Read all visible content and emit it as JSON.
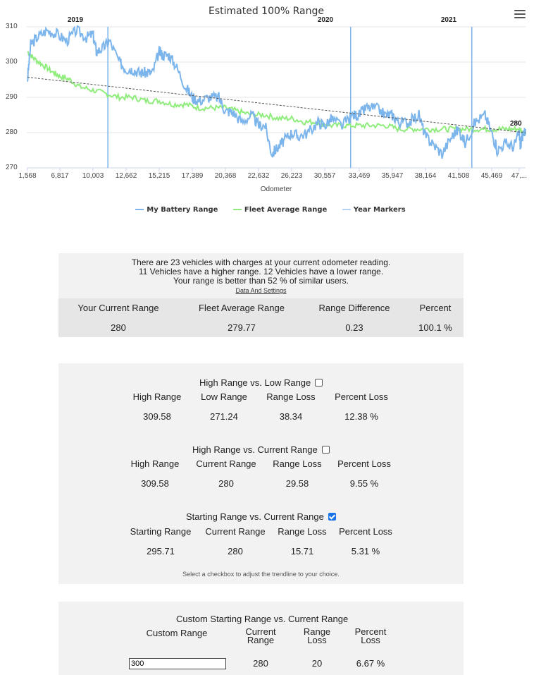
{
  "chart": {
    "title": "Estimated 100% Range",
    "menu_icon": "hamburger-menu-icon",
    "x_axis_title": "Odometer",
    "end_label": "280",
    "legend": [
      {
        "name": "My Battery Range",
        "color": "#7cb5ec"
      },
      {
        "name": "Fleet Average Range",
        "color": "#90ed7d"
      },
      {
        "name": "Year Markers",
        "color": "#b3d4f5"
      }
    ]
  },
  "chart_data": {
    "type": "line",
    "title": "Estimated 100% Range",
    "xlabel": "Odometer",
    "ylabel": "",
    "ylim": [
      270,
      310
    ],
    "y_ticks": [
      "310",
      "300",
      "290",
      "280",
      "270"
    ],
    "x_tick_labels": [
      "1,568",
      "6,817",
      "10,003",
      "12,662",
      "15,215",
      "17,389",
      "20,368",
      "22,632",
      "26,223",
      "30,557",
      "33,469",
      "35,947",
      "38,164",
      "41,508",
      "45,469",
      "47,..."
    ],
    "year_markers": [
      {
        "label": "2019",
        "x_index": 2.45
      },
      {
        "label": "2020",
        "x_index": 9.75
      },
      {
        "label": "2021",
        "x_index": 13.4
      }
    ],
    "legend_placement": "bottom-center",
    "grid": true,
    "series": [
      {
        "name": "My Battery Range",
        "color": "#7cb5ec",
        "x": [
          0,
          0.1,
          0.3,
          0.6,
          0.9,
          1.2,
          1.5,
          1.8,
          2.0,
          2.1,
          2.3,
          2.5,
          2.8,
          3.0,
          3.2,
          3.4,
          3.6,
          3.8,
          4.0,
          4.1,
          4.3,
          4.5,
          4.8,
          5.0,
          5.2,
          5.5,
          5.8,
          6.0,
          6.2,
          6.5,
          6.8,
          7.0,
          7.2,
          7.4,
          7.6,
          7.8,
          8.0,
          8.2,
          8.5,
          8.8,
          9.0,
          9.2,
          9.5,
          9.8,
          10.0,
          10.2,
          10.5,
          10.8,
          11.0,
          11.2,
          11.5,
          11.8,
          12.0,
          12.2,
          12.5,
          12.8,
          13.0,
          13.2,
          13.5,
          13.8,
          14.0,
          14.2,
          14.5,
          14.8,
          15.0,
          15.2,
          15.5,
          15.7,
          16.0
        ],
        "values": [
          295,
          305,
          307,
          309,
          308,
          306,
          309,
          307,
          308,
          303,
          304,
          306,
          300,
          298,
          298,
          297,
          297,
          297,
          303,
          302,
          302,
          299,
          293,
          290,
          289,
          290,
          290,
          286,
          286,
          283,
          285,
          282,
          282,
          274,
          276,
          278,
          280,
          279,
          280,
          283,
          282,
          284,
          282,
          285,
          285,
          287,
          287,
          285,
          285,
          283,
          283,
          285,
          279,
          277,
          274,
          279,
          281,
          277,
          283,
          285,
          280,
          275,
          277,
          276,
          280,
          276,
          279,
          279,
          281
        ]
      },
      {
        "name": "Fleet Average Range",
        "color": "#90ed7d",
        "x": [
          0,
          0.2,
          0.5,
          0.8,
          1.0,
          1.3,
          1.6,
          2.0,
          2.4,
          2.8,
          3.2,
          3.6,
          4.0,
          4.4,
          4.8,
          5.2,
          5.6,
          6.0,
          6.4,
          6.8,
          7.2,
          7.6,
          8.0,
          8.4,
          8.8,
          9.2,
          9.6,
          10.0,
          10.4,
          10.8,
          11.2,
          11.6,
          12.0,
          12.4,
          12.8,
          13.2,
          13.6,
          14.0,
          14.4,
          14.8,
          15.2,
          15.6,
          16.0
        ],
        "values": [
          303,
          301,
          299,
          297,
          296,
          295,
          293,
          292,
          291,
          290,
          290,
          289,
          289,
          288,
          288,
          287,
          287,
          287,
          286,
          285,
          285,
          284,
          284,
          283,
          283,
          282,
          282,
          282,
          282,
          282,
          281,
          281,
          281,
          281,
          281,
          281,
          281,
          281,
          281,
          281,
          281,
          280,
          280
        ]
      },
      {
        "name": "Trendline",
        "color": "#555555",
        "x": [
          0,
          16.0
        ],
        "values": [
          295.71,
          280
        ]
      },
      {
        "name": "Year Markers",
        "color": "#7cb5ec"
      }
    ]
  },
  "summary": {
    "line1": "There are 23 vehicles with charges at your current odometer reading.",
    "line2": "11 Vehicles have a higher range. 12 Vehicles have a lower range.",
    "line3": "Your range is better than 52 % of similar users.",
    "link": "Data And Settings",
    "headers": [
      "Your Current Range",
      "Fleet Average Range",
      "Range Difference",
      "Percent"
    ],
    "values": [
      "280",
      "279.77",
      "0.23",
      "100.1 %"
    ]
  },
  "comparisons": {
    "section1": {
      "title": "High Range vs. Low Range",
      "checked": false,
      "headers": [
        "High Range",
        "Low Range",
        "Range Loss",
        "Percent Loss"
      ],
      "values": [
        "309.58",
        "271.24",
        "38.34",
        "12.38 %"
      ]
    },
    "section2": {
      "title": "High Range vs. Current Range",
      "checked": false,
      "headers": [
        "High Range",
        "Current Range",
        "Range Loss",
        "Percent Loss"
      ],
      "values": [
        "309.58",
        "280",
        "29.58",
        "9.55 %"
      ]
    },
    "section3": {
      "title": "Starting Range vs. Current Range",
      "checked": true,
      "headers": [
        "Starting Range",
        "Current Range",
        "Range Loss",
        "Percent Loss"
      ],
      "values": [
        "295.71",
        "280",
        "15.71",
        "5.31 %"
      ]
    },
    "note": "Select a checkbox to adjust the trendline to your choice."
  },
  "custom": {
    "title": "Custom Starting Range vs. Current Range",
    "header_custom": "Custom Range",
    "header_current_1": "Current",
    "header_current_2": "Range",
    "header_loss_1": "Range",
    "header_loss_2": "Loss",
    "header_pct_1": "Percent",
    "header_pct_2": "Loss",
    "input_value": "300",
    "values": [
      "280",
      "20",
      "6.67 %"
    ]
  }
}
